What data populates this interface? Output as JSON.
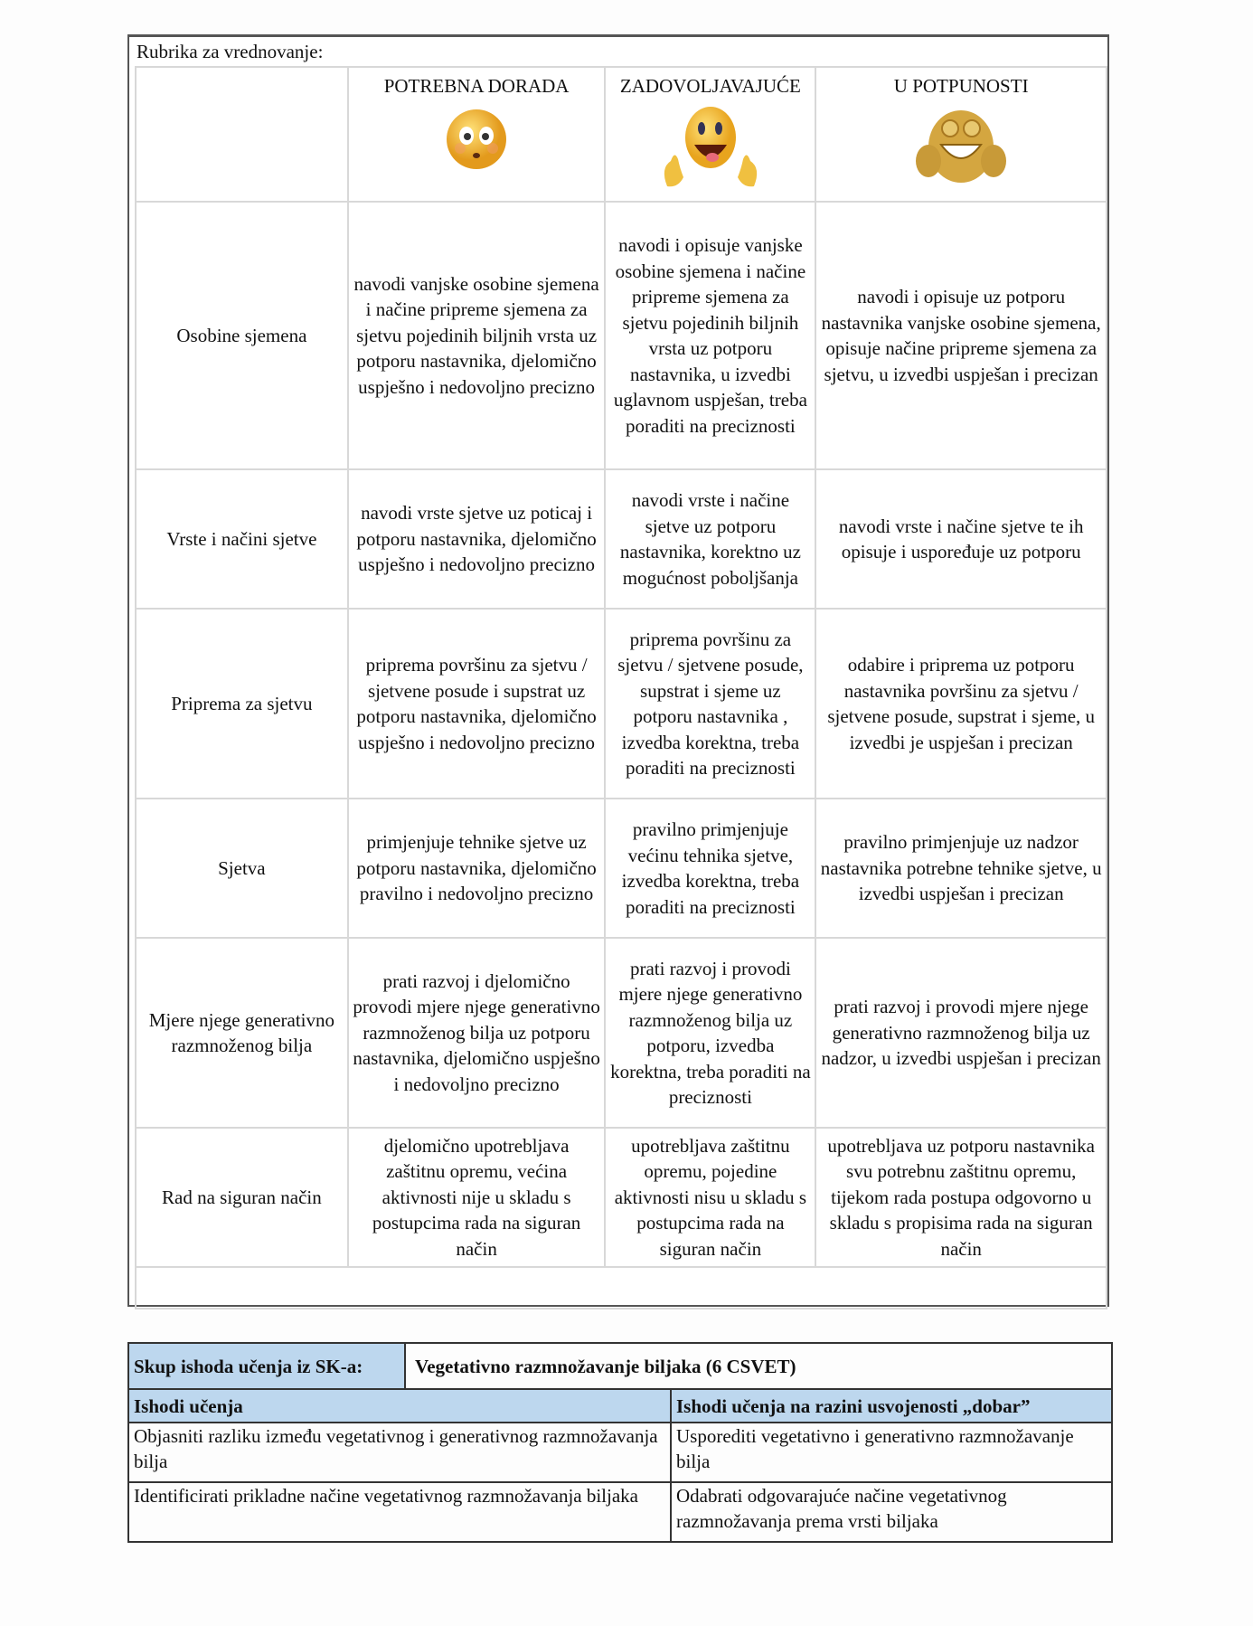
{
  "rubric": {
    "label": "Rubrika za vrednovanje:",
    "levels": [
      {
        "title": "POTREBNA DORADA",
        "icon": "flushed-face-icon"
      },
      {
        "title": "ZADOVOLJAVAJUĆE",
        "icon": "thumbs-up-smiley-icon"
      },
      {
        "title": "U POTPUNOSTI",
        "icon": "grinning-thumbs-up-smiley-icon"
      }
    ],
    "rows": [
      {
        "criterion": "Osobine sjemena",
        "cells": [
          "navodi vanjske osobine sjemena i načine pripreme sjemena za sjetvu pojedinih biljnih vrsta uz  potporu nastavnika, djelomično uspješno i nedovoljno precizno",
          "navodi i opisuje vanjske osobine sjemena i načine pripreme sjemena za sjetvu pojedinih biljnih vrsta uz potporu nastavnika, u izvedbi uglavnom uspješan, treba poraditi na preciznosti",
          "navodi i opisuje uz potporu nastavnika vanjske osobine sjemena, opisuje načine pripreme sjemena za sjetvu, u izvedbi uspješan i precizan"
        ]
      },
      {
        "criterion": "Vrste i načini sjetve",
        "cells": [
          "navodi vrste sjetve uz poticaj i potporu nastavnika, djelomično uspješno i nedovoljno precizno",
          "navodi vrste i načine sjetve uz potporu nastavnika, korektno uz mogućnost poboljšanja",
          "navodi  vrste i načine sjetve te ih opisuje i uspoređuje uz potporu"
        ]
      },
      {
        "criterion": "Priprema za sjetvu",
        "cells": [
          "priprema površinu za sjetvu / sjetvene posude i supstrat uz potporu nastavnika, djelomično uspješno i nedovoljno precizno",
          "priprema površinu za sjetvu / sjetvene posude, supstrat i sjeme uz potporu nastavnika ,  izvedba korektna, treba poraditi na preciznosti",
          "odabire i priprema uz potporu nastavnika površinu za sjetvu / sjetvene posude, supstrat i sjeme, u izvedbi je uspješan i precizan"
        ]
      },
      {
        "criterion": "Sjetva",
        "cells": [
          "primjenjuje tehnike sjetve uz potporu nastavnika, djelomično pravilno i nedovoljno precizno",
          "pravilno primjenjuje većinu tehnika sjetve, izvedba korektna, treba poraditi na preciznosti",
          "pravilno primjenjuje uz nadzor nastavnika potrebne tehnike sjetve, u izvedbi uspješan i precizan"
        ]
      },
      {
        "criterion": "Mjere njege generativno razmnoženog bilja",
        "cells": [
          "prati razvoj i djelomično provodi mjere njege generativno razmnoženog bilja uz potporu nastavnika, djelomično uspješno i nedovoljno precizno",
          "prati razvoj i provodi mjere njege generativno razmnoženog bilja uz potporu, izvedba korektna, treba poraditi na preciznosti",
          "prati razvoj i provodi  mjere njege generativno razmnoženog bilja uz nadzor, u izvedbi uspješan i precizan"
        ]
      },
      {
        "criterion": "Rad na siguran način",
        "cells": [
          "djelomično upotrebljava zaštitnu opremu, većina aktivnosti nije u skladu s postupcima rada na siguran način",
          "upotrebljava zaštitnu opremu, pojedine aktivnosti nisu u skladu s postupcima rada na siguran način",
          "upotrebljava uz potporu nastavnika svu potrebnu zaštitnu opremu, tijekom rada postupa odgovorno u skladu s propisima rada na siguran način"
        ]
      }
    ]
  },
  "outcomes": {
    "set_label": "Skup ishoda učenja iz SK-a:",
    "set_value": "Vegetativno razmnožavanje biljaka (6 CSVET)",
    "col1": "Ishodi učenja",
    "col2": "Ishodi učenja na razini usvojenosti „dobar”",
    "rows": [
      [
        "Objasniti razliku između vegetativnog i generativnog razmnožavanja bilja",
        "Usporediti vegetativno i generativno razmnožavanje bilja"
      ],
      [
        "Identificirati prikladne načine vegetativnog razmnožavanja biljaka",
        "Odabrati odgovarajuće načine vegetativnog razmnožavanja prema vrsti biljaka"
      ]
    ],
    "header_color": "#bdd7ee"
  }
}
